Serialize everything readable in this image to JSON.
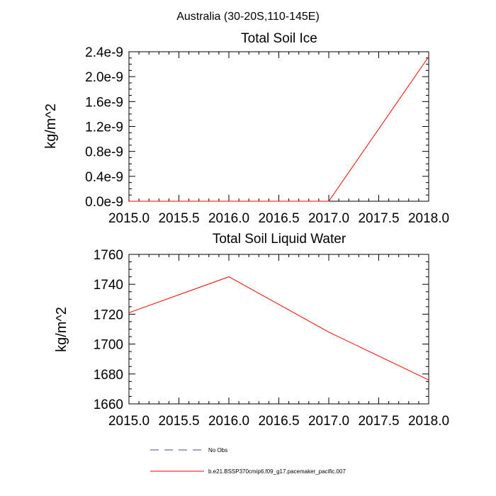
{
  "figure": {
    "title": "Australia (30-20S,110-145E)"
  },
  "chart_data": [
    {
      "type": "line",
      "title": "Total Soil Ice",
      "xlabel": "",
      "ylabel": "kg/m^2",
      "xlim": [
        2015.0,
        2018.0
      ],
      "ylim": [
        0.0,
        2.4e-09
      ],
      "x_ticks": [
        2015.0,
        2015.5,
        2016.0,
        2016.5,
        2017.0,
        2017.5,
        2018.0
      ],
      "x_tick_labels": [
        "2015.0",
        "2015.5",
        "2016.0",
        "2016.5",
        "2017.0",
        "2017.5",
        "2018.0"
      ],
      "y_ticks": [
        0.0,
        4e-10,
        8e-10,
        1.2e-09,
        1.6e-09,
        2e-09,
        2.4e-09
      ],
      "y_tick_labels": [
        "0.0e-9",
        "0.4e-9",
        "0.8e-9",
        "1.2e-9",
        "1.6e-9",
        "2.0e-9",
        "2.4e-9"
      ],
      "grid": false,
      "series": [
        {
          "name": "b.e21.BSSP370cmip6.f09_g17.pacemaker_pacific.007",
          "color": "#ff0000",
          "x": [
            2015,
            2016,
            2017,
            2018
          ],
          "y": [
            0.0,
            0.0,
            0.0,
            2.32e-09
          ]
        }
      ]
    },
    {
      "type": "line",
      "title": "Total Soil Liquid Water",
      "xlabel": "",
      "ylabel": "kg/m^2",
      "xlim": [
        2015.0,
        2018.0
      ],
      "ylim": [
        1660,
        1760
      ],
      "x_ticks": [
        2015.0,
        2015.5,
        2016.0,
        2016.5,
        2017.0,
        2017.5,
        2018.0
      ],
      "x_tick_labels": [
        "2015.0",
        "2015.5",
        "2016.0",
        "2016.5",
        "2017.0",
        "2017.5",
        "2018.0"
      ],
      "y_ticks": [
        1660,
        1680,
        1700,
        1720,
        1740,
        1760
      ],
      "y_tick_labels": [
        "1660",
        "1680",
        "1700",
        "1720",
        "1740",
        "1760"
      ],
      "grid": false,
      "series": [
        {
          "name": "b.e21.BSSP370cmip6.f09_g17.pacemaker_pacific.007",
          "color": "#ff0000",
          "x": [
            2015,
            2016,
            2017,
            2018
          ],
          "y": [
            1721,
            1745,
            1708,
            1676
          ]
        }
      ]
    }
  ],
  "legend": {
    "placement": "bottom",
    "items": [
      {
        "label": "No Obs",
        "color": "#4444aa",
        "style": "dashed"
      },
      {
        "label": "b.e21.BSSP370cmip6.f09_g17.pacemaker_pacific.007",
        "color": "#ff0000",
        "style": "solid"
      }
    ]
  }
}
